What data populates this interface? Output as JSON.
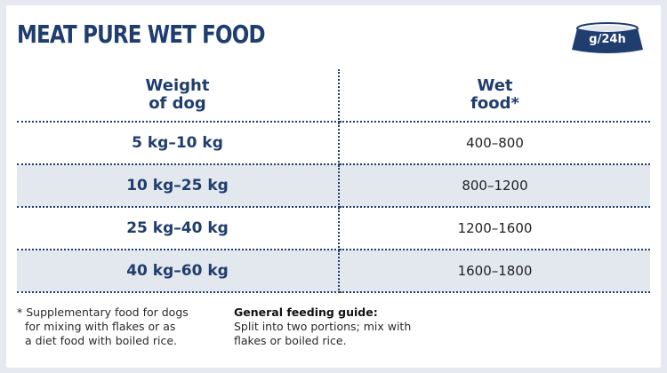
{
  "title": "MEAT PURE WET FOOD",
  "unit_badge": "g/24h",
  "table": {
    "headers": {
      "weight": [
        "Weight",
        "of dog"
      ],
      "food": [
        "Wet",
        "food*"
      ]
    },
    "rows": [
      {
        "weight": "5 kg–10 kg",
        "food": "400–800"
      },
      {
        "weight": "10 kg–25 kg",
        "food": "800–1200"
      },
      {
        "weight": "25 kg–40 kg",
        "food": "1200–1600"
      },
      {
        "weight": "40 kg–60 kg",
        "food": "1600–1800"
      }
    ]
  },
  "footnote": [
    "* Supplementary food for dogs",
    "for mixing with flakes or as",
    "a diet food with boiled rice."
  ],
  "guide": {
    "title": "General feeding guide:",
    "lines": [
      "Split into two portions; mix with",
      "flakes or boiled rice."
    ]
  },
  "colors": {
    "brand": "#1f3d6e",
    "row_shade": "#e3e7ee",
    "background": "#e6e9ef"
  },
  "icons": {
    "bowl": "food-bowl-icon"
  }
}
